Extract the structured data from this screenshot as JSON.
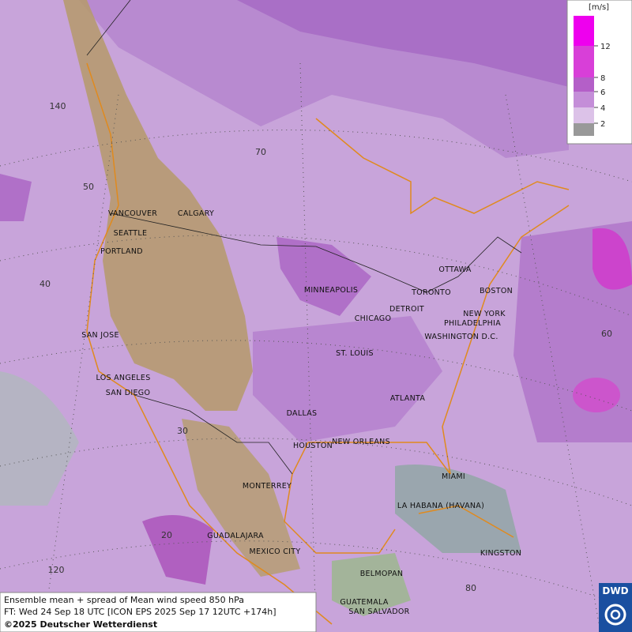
{
  "map": {
    "cities": [
      "VANCOUVER",
      "CALGARY",
      "SEATTLE",
      "PORTLAND",
      "MINNEAPOLIS",
      "OTTAWA",
      "TORONTO",
      "BOSTON",
      "DETROIT",
      "CHICAGO",
      "NEW YORK",
      "PHILADELPHIA",
      "WASHINGTON D.C.",
      "SAN JOSE",
      "ST. LOUIS",
      "LOS ANGELES",
      "SAN DIEGO",
      "ATLANTA",
      "DALLAS",
      "HOUSTON",
      "NEW ORLEANS",
      "MIAMI",
      "MONTERREY",
      "LA HABANA (HAVANA)",
      "GUADALAJARA",
      "MEXICO CITY",
      "KINGSTON",
      "BELMOPAN",
      "GUATEMALA",
      "SAN SALVADOR"
    ],
    "grid_labels": [
      "70",
      "140",
      "50",
      "40",
      "30",
      "20",
      "120",
      "80",
      "60"
    ]
  },
  "legend": {
    "unit": "[m/s]",
    "ticks": [
      12,
      8,
      6,
      4,
      2
    ]
  },
  "footer": {
    "line1": "Ensemble mean + spread of Mean wind speed 850 hPa",
    "line2": "FT: Wed 24 Sep 18 UTC [ICON EPS 2025 Sep 17 12UTC +174h]",
    "line3": "©2025 Deutscher Wetterdienst"
  },
  "logo": "DWD"
}
